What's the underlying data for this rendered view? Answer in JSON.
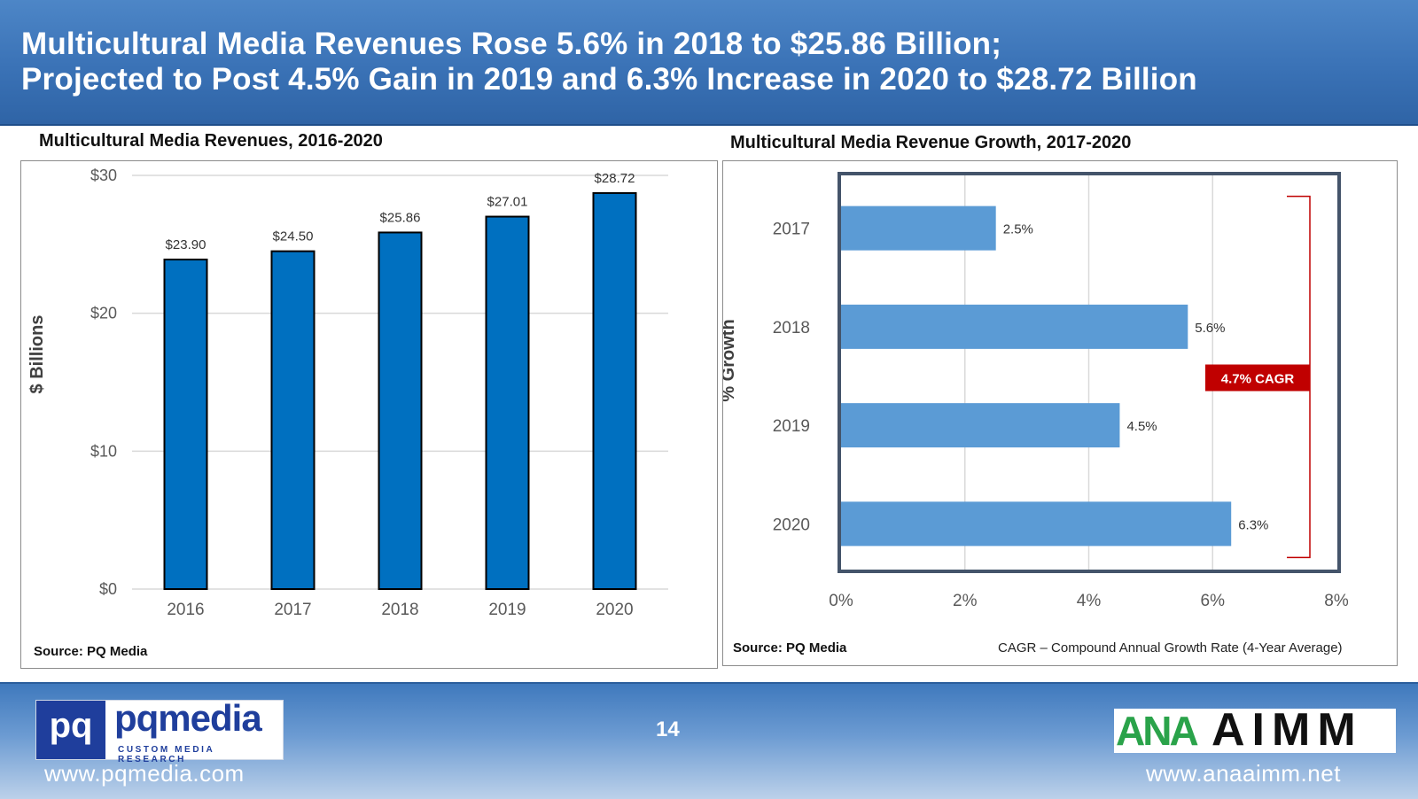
{
  "header": {
    "line1": "Multicultural Media Revenues Rose 5.6% in 2018 to $25.86 Billion;",
    "line2": "Projected to Post 4.5% Gain in 2019 and 6.3% Increase in 2020 to $28.72 Billion"
  },
  "chart_data": [
    {
      "type": "bar",
      "title": "Multicultural Media Revenues, 2016-2020",
      "categories": [
        "2016",
        "2017",
        "2018",
        "2019",
        "2020"
      ],
      "values": [
        23.9,
        24.5,
        25.86,
        27.01,
        28.72
      ],
      "data_labels": [
        "$23.90",
        "$24.50",
        "$25.86",
        "$27.01",
        "$28.72"
      ],
      "xlabel": "",
      "ylabel": "$ Billions",
      "ylim": [
        0,
        30
      ],
      "yticks": [
        0,
        10,
        20,
        30
      ],
      "ytick_labels": [
        "$0",
        "$10",
        "$20",
        "$30"
      ],
      "grid": true,
      "color": "#0070c0",
      "source": "Source: PQ Media"
    },
    {
      "type": "bar",
      "orientation": "horizontal",
      "title": "Multicultural Media Revenue Growth, 2017-2020",
      "categories": [
        "2017",
        "2018",
        "2019",
        "2020"
      ],
      "values": [
        2.5,
        5.6,
        4.5,
        6.3
      ],
      "data_labels": [
        "2.5%",
        "5.6%",
        "4.5%",
        "6.3%"
      ],
      "xlabel": "",
      "ylabel": "% Growth",
      "xlim": [
        0,
        8
      ],
      "xticks": [
        0,
        2,
        4,
        6,
        8
      ],
      "xtick_labels": [
        "0%",
        "2%",
        "4%",
        "6%",
        "8%"
      ],
      "grid": true,
      "color": "#5b9bd5",
      "annotation": {
        "text": "4.7% CAGR",
        "color": "#c00000"
      },
      "source": "Source: PQ Media",
      "note": "CAGR – Compound Annual Growth Rate (4-Year Average)"
    }
  ],
  "footer": {
    "page_number": "14",
    "left_url": "www.pqmedia.com",
    "right_url": "www.anaaimm.net",
    "left_logo": {
      "mark": "pq",
      "word": "pqmedia",
      "tagline": "CUSTOM MEDIA RESEARCH"
    },
    "right_logo": {
      "mark": "ANA",
      "word": "AIMM"
    }
  }
}
